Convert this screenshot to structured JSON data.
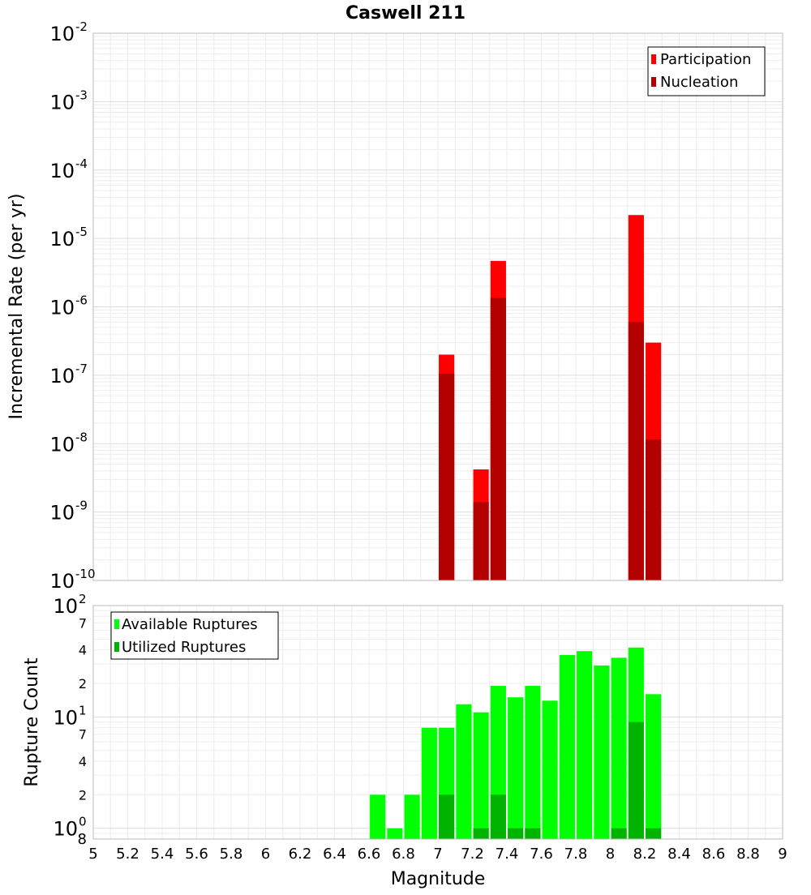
{
  "title": "Caswell 211",
  "xlabel": "Magnitude",
  "chart_data": [
    {
      "type": "bar",
      "title": "Caswell 211",
      "ylabel": "Incremental Rate (per yr)",
      "yscale": "log",
      "ylim": [
        1e-10,
        0.01
      ],
      "xlim": [
        5,
        9
      ],
      "grid": true,
      "legend_position": "top-right",
      "x": [
        7.05,
        7.25,
        7.35,
        8.15,
        8.25
      ],
      "series": [
        {
          "name": "Participation",
          "color": "#ff0000",
          "values": [
            2e-07,
            4.2e-09,
            4.7e-06,
            2.2e-05,
            3e-07
          ]
        },
        {
          "name": "Nucleation",
          "color": "#b30000",
          "values": [
            1.05e-07,
            1.4e-09,
            1.35e-06,
            6e-07,
            1.15e-08
          ]
        }
      ]
    },
    {
      "type": "bar",
      "ylabel": "Rupture Count",
      "yscale": "log",
      "ylim": [
        0.8,
        100
      ],
      "xlim": [
        5,
        9
      ],
      "grid": true,
      "legend_position": "top-left",
      "x": [
        6.65,
        6.75,
        6.85,
        6.95,
        7.05,
        7.15,
        7.25,
        7.35,
        7.45,
        7.55,
        7.65,
        7.75,
        7.85,
        7.95,
        8.05,
        8.15,
        8.25
      ],
      "series": [
        {
          "name": "Available Ruptures",
          "color": "#00ff00",
          "values": [
            2,
            1,
            2,
            8,
            8,
            13,
            11,
            19,
            15,
            19,
            14,
            36,
            39,
            29,
            34,
            42,
            16
          ]
        },
        {
          "name": "Utilized Ruptures",
          "color": "#00b300",
          "values": [
            0,
            0,
            0,
            0,
            2,
            0,
            1,
            2,
            1,
            1,
            0,
            0,
            0,
            0,
            1,
            9,
            1
          ]
        }
      ]
    }
  ],
  "x_ticks": [
    "5",
    "5.2",
    "5.4",
    "5.6",
    "5.8",
    "6",
    "6.2",
    "6.4",
    "6.6",
    "6.8",
    "7",
    "7.2",
    "7.4",
    "7.6",
    "7.8",
    "8",
    "8.2",
    "8.4",
    "8.6",
    "8.8",
    "9"
  ],
  "top_y_ticks": [
    {
      "base": "10",
      "exp": "-2"
    },
    {
      "base": "10",
      "exp": "-3"
    },
    {
      "base": "10",
      "exp": "-4"
    },
    {
      "base": "10",
      "exp": "-5"
    },
    {
      "base": "10",
      "exp": "-6"
    },
    {
      "base": "10",
      "exp": "-7"
    },
    {
      "base": "10",
      "exp": "-8"
    },
    {
      "base": "10",
      "exp": "-9"
    },
    {
      "base": "10",
      "exp": "-10"
    }
  ],
  "bottom_y_major_ticks": [
    {
      "base": "10",
      "exp": "2"
    },
    {
      "base": "10",
      "exp": "1"
    },
    {
      "base": "10",
      "exp": "0"
    }
  ],
  "bottom_y_minor_ticks": [
    {
      "label": "7",
      "value": 70
    },
    {
      "label": "4",
      "value": 40
    },
    {
      "label": "2",
      "value": 20
    },
    {
      "label": "7",
      "value": 7
    },
    {
      "label": "4",
      "value": 4
    },
    {
      "label": "2",
      "value": 2
    },
    {
      "label": "8",
      "value": 0.8
    }
  ]
}
